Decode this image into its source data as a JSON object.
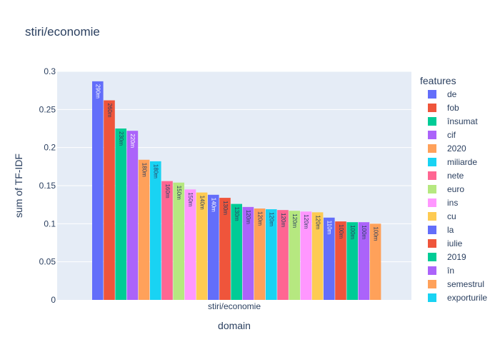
{
  "chart_data": {
    "type": "bar",
    "title": "stiri/economie",
    "xlabel": "domain",
    "ylabel": "sum of TF-IDF",
    "categories": [
      "stiri/economie"
    ],
    "ylim": [
      0,
      0.3
    ],
    "yticks": [
      "0",
      "0.05",
      "0.1",
      "0.15",
      "0.2",
      "0.25",
      "0.3"
    ],
    "legend_title": "features",
    "legend_position": "right",
    "series": [
      {
        "name": "de",
        "value": 0.287,
        "label": "290m",
        "color": "#636efa",
        "label_color": "#ffffff"
      },
      {
        "name": "fob",
        "value": 0.262,
        "label": "260m",
        "color": "#EF553B",
        "label_color": "#2a3f5f"
      },
      {
        "name": "însumat",
        "value": 0.225,
        "label": "230m",
        "color": "#00cc96",
        "label_color": "#2a3f5f"
      },
      {
        "name": "cif",
        "value": 0.222,
        "label": "220m",
        "color": "#ab63fa",
        "label_color": "#ffffff"
      },
      {
        "name": "2020",
        "value": 0.184,
        "label": "180m",
        "color": "#FFA15A",
        "label_color": "#2a3f5f"
      },
      {
        "name": "miliarde",
        "value": 0.182,
        "label": "180m",
        "color": "#19d3f3",
        "label_color": "#2a3f5f"
      },
      {
        "name": "nete",
        "value": 0.156,
        "label": "160m",
        "color": "#FF6692",
        "label_color": "#2a3f5f"
      },
      {
        "name": "euro",
        "value": 0.154,
        "label": "150m",
        "color": "#B6E880",
        "label_color": "#2a3f5f"
      },
      {
        "name": "ins",
        "value": 0.145,
        "label": "150m",
        "color": "#FF97FF",
        "label_color": "#2a3f5f"
      },
      {
        "name": "cu",
        "value": 0.141,
        "label": "140m",
        "color": "#FECB52",
        "label_color": "#2a3f5f"
      },
      {
        "name": "la",
        "value": 0.138,
        "label": "140m",
        "color": "#636efa",
        "label_color": "#ffffff"
      },
      {
        "name": "iulie",
        "value": 0.134,
        "label": "130m",
        "color": "#EF553B",
        "label_color": "#2a3f5f"
      },
      {
        "name": "2019",
        "value": 0.126,
        "label": "130m",
        "color": "#00cc96",
        "label_color": "#2a3f5f"
      },
      {
        "name": "în",
        "value": 0.122,
        "label": "120m",
        "color": "#ab63fa",
        "label_color": "#2a3f5f"
      },
      {
        "name": "semestrul",
        "value": 0.12,
        "label": "120m",
        "color": "#FFA15A",
        "label_color": "#2a3f5f"
      },
      {
        "name": "exporturile",
        "value": 0.119,
        "label": "120m",
        "color": "#19d3f3",
        "label_color": "#2a3f5f"
      },
      {
        "name": "",
        "value": 0.118,
        "label": "120m",
        "color": "#FF6692",
        "label_color": "#2a3f5f"
      },
      {
        "name": "",
        "value": 0.117,
        "label": "120m",
        "color": "#B6E880",
        "label_color": "#2a3f5f"
      },
      {
        "name": "",
        "value": 0.116,
        "label": "120m",
        "color": "#FF97FF",
        "label_color": "#2a3f5f"
      },
      {
        "name": "",
        "value": 0.115,
        "label": "120m",
        "color": "#FECB52",
        "label_color": "#2a3f5f"
      },
      {
        "name": "",
        "value": 0.108,
        "label": "110m",
        "color": "#636efa",
        "label_color": "#ffffff"
      },
      {
        "name": "",
        "value": 0.103,
        "label": "100m",
        "color": "#EF553B",
        "label_color": "#2a3f5f"
      },
      {
        "name": "",
        "value": 0.102,
        "label": "100m",
        "color": "#00cc96",
        "label_color": "#2a3f5f"
      },
      {
        "name": "",
        "value": 0.102,
        "label": "100m",
        "color": "#ab63fa",
        "label_color": "#2a3f5f"
      },
      {
        "name": "",
        "value": 0.1,
        "label": "100m",
        "color": "#FFA15A",
        "label_color": "#2a3f5f"
      }
    ],
    "legend_visible_count": 16
  }
}
